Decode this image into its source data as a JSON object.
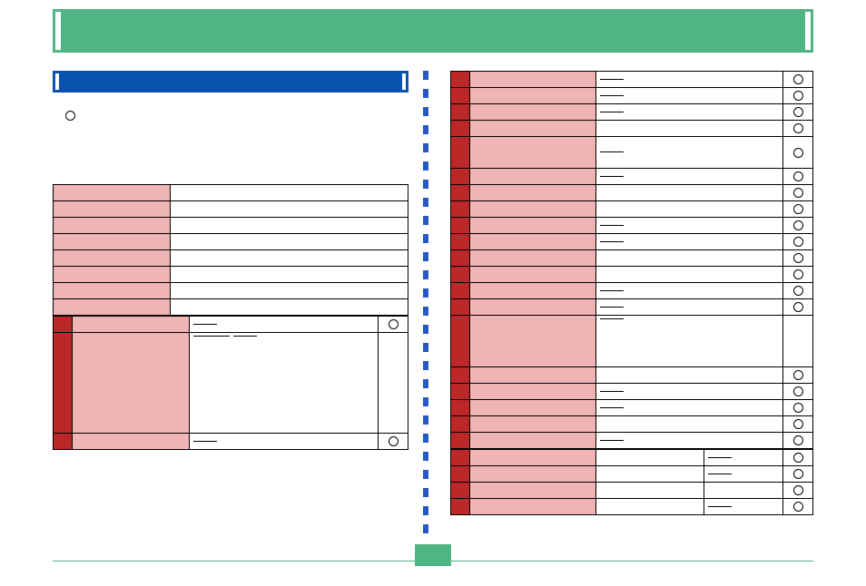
{
  "colors": {
    "green": "#4fb584",
    "blue": "#0a52b0",
    "pink": "#efb5b5",
    "red": "#bc2828",
    "divider": "#2857c6"
  },
  "header": {
    "title": ""
  },
  "left": {
    "section_title": "",
    "bullet": {
      "text": ""
    },
    "table_top": {
      "rows": [
        {
          "label": "",
          "val": "",
          "circle": false
        },
        {
          "label": "",
          "val": "",
          "circle": false
        },
        {
          "label": "",
          "val": "",
          "circle": false
        },
        {
          "label": "",
          "val": "",
          "circle": false
        },
        {
          "label": "",
          "val": "",
          "circle": false
        },
        {
          "label": "",
          "val": "",
          "circle": false
        },
        {
          "label": "",
          "val": "",
          "circle": false
        },
        {
          "label": "",
          "val": "",
          "circle": false
        }
      ]
    },
    "table_red": {
      "rows": [
        {
          "label": "",
          "val": "—",
          "circle": true
        },
        {
          "label": "",
          "val": "—   —",
          "circle": false,
          "tall": true
        },
        {
          "label": "",
          "val": "—",
          "circle": true
        }
      ]
    }
  },
  "right": {
    "rows": [
      {
        "label": "",
        "val": "—",
        "circle": true
      },
      {
        "label": "",
        "val": "—",
        "circle": true
      },
      {
        "label": "",
        "val": "—",
        "circle": true
      },
      {
        "label": "",
        "val": "",
        "circle": true
      },
      {
        "label": "",
        "val": "—",
        "circle": true,
        "tall": true
      },
      {
        "label": "",
        "val": "—",
        "circle": true
      },
      {
        "label": "",
        "val": "",
        "circle": true
      },
      {
        "label": "",
        "val": "",
        "circle": true
      },
      {
        "label": "",
        "val": "—",
        "circle": true
      },
      {
        "label": "",
        "val": "—",
        "circle": true
      },
      {
        "label": "",
        "val": "",
        "circle": true
      },
      {
        "label": "",
        "val": "",
        "circle": true
      },
      {
        "label": "",
        "val": "—",
        "circle": true
      },
      {
        "label": "",
        "val": "—",
        "circle": true
      },
      {
        "label": "",
        "val": "—",
        "circle": false,
        "tall2": true
      },
      {
        "label": "",
        "val": "",
        "circle": true
      },
      {
        "label": "",
        "val": "—",
        "circle": true
      },
      {
        "label": "",
        "val": "—",
        "circle": true
      },
      {
        "label": "",
        "val": "",
        "circle": true
      },
      {
        "label": "",
        "val": "—",
        "circle": true
      }
    ],
    "foot": {
      "rows": [
        {
          "a": "",
          "b": "—",
          "circle": true
        },
        {
          "a": "",
          "b": "—",
          "circle": true
        },
        {
          "a": "",
          "b": "",
          "circle": true
        },
        {
          "a": "",
          "b": "—",
          "circle": true
        }
      ]
    }
  },
  "page_number": ""
}
